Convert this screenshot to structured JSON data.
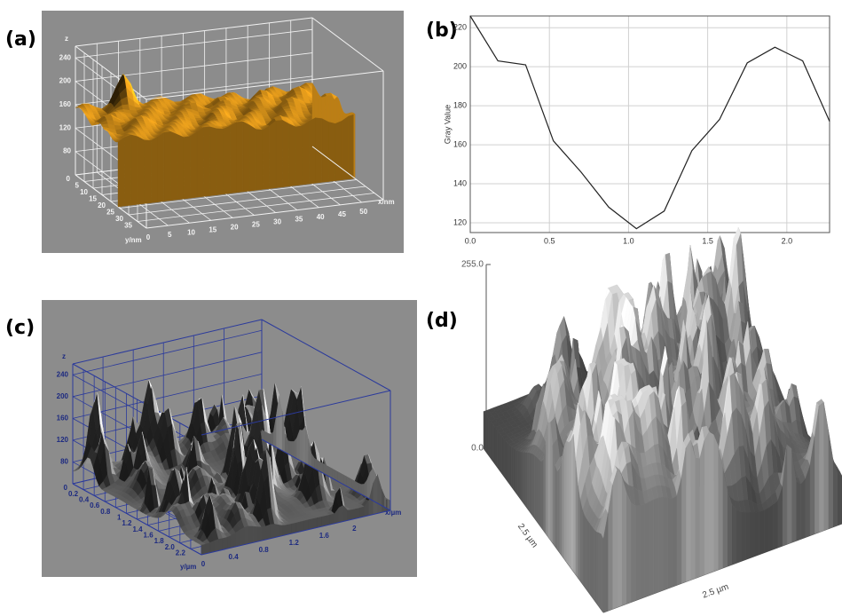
{
  "chart_data": [
    {
      "type": "surface",
      "label": "(a)",
      "zlabel": "z",
      "xlabel": "x/nm",
      "ylabel": "y/nm",
      "xlim": [
        0,
        55
      ],
      "ylim": [
        0,
        40
      ],
      "zlim": [
        40,
        260
      ],
      "xticks": [
        0,
        5,
        10,
        15,
        20,
        25,
        30,
        35,
        40,
        45,
        50
      ],
      "yticks": [
        0,
        5,
        10,
        15,
        20,
        25,
        30,
        35
      ],
      "zticks": [
        80,
        120,
        160,
        200,
        240
      ],
      "color": "#e8a21e"
    },
    {
      "type": "line",
      "label": "(b)",
      "ylabel": "Gray Value",
      "x": [
        0,
        0.175,
        0.35,
        0.525,
        0.7,
        0.875,
        1.05,
        1.225,
        1.4,
        1.575,
        1.75,
        1.925,
        2.1,
        2.27
      ],
      "values": [
        226,
        203,
        201,
        162,
        146,
        128,
        117,
        126,
        157,
        173,
        202,
        210,
        203,
        172
      ],
      "xlim": [
        0,
        2.27
      ],
      "ylim": [
        115,
        226
      ],
      "xticks": [
        {
          "value": 0,
          "label": "0.0"
        },
        {
          "value": 0.5,
          "label": "0.5"
        },
        {
          "value": 1,
          "label": "1.0"
        },
        {
          "value": 1.5,
          "label": "1.5"
        },
        {
          "value": 2,
          "label": "2.0"
        }
      ],
      "yticks": [
        120,
        140,
        160,
        180,
        200,
        220
      ],
      "grid": true,
      "color": "#222222"
    },
    {
      "type": "surface",
      "label": "(c)",
      "zlabel": "z",
      "xlabel": "x/µm",
      "ylabel": "y/µm",
      "xlim": [
        0,
        2.5
      ],
      "ylim": [
        0,
        2.4
      ],
      "zlim": [
        40,
        260
      ],
      "xticks": [
        0,
        0.4,
        0.8,
        1.2,
        1.6,
        2
      ],
      "yticks": [
        0,
        0.2,
        0.4,
        0.6,
        0.8,
        1,
        1.2,
        1.4,
        1.6,
        1.8,
        {
          "value": 2,
          "label": "2.0"
        },
        2.2
      ],
      "zticks": [
        80,
        120,
        160,
        200,
        240
      ],
      "color": "#e8e8e8"
    },
    {
      "type": "surface",
      "label": "(d)",
      "xlabel": "2.5 µm",
      "ylabel": "2.5 µm",
      "zlim": [
        0,
        255
      ],
      "zticks": [
        {
          "value": 255,
          "label": "255.0"
        },
        {
          "value": 0,
          "label": "0.0"
        }
      ],
      "color": "#cccccc"
    }
  ]
}
